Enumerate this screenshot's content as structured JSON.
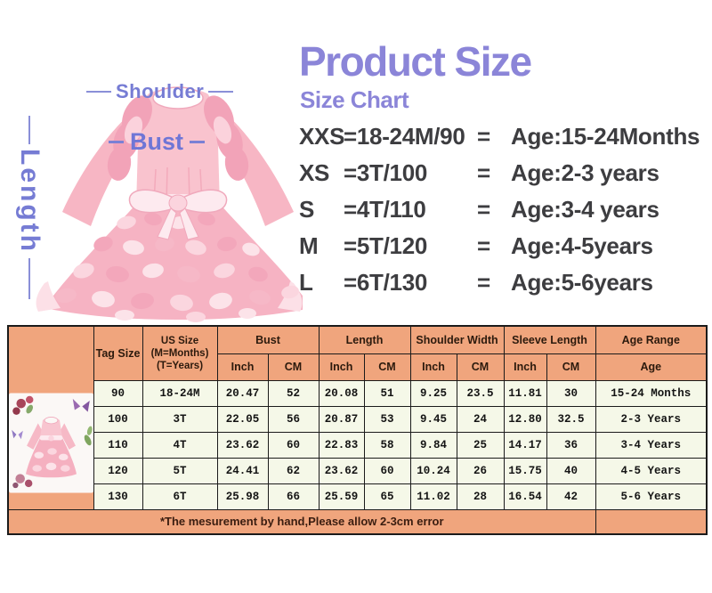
{
  "colors": {
    "accent_purple": "#8b85d8",
    "diagram_label_purple": "#767cd4",
    "table_header_peach": "#f0a57d",
    "table_body_cream": "#f5f8e8"
  },
  "header": {
    "title": "Product Size",
    "subtitle": "Size Chart"
  },
  "diagram": {
    "shoulder_label": "Shoulder",
    "bust_label": "Bust",
    "length_label": "Length"
  },
  "size_list": [
    {
      "label": "XXS",
      "spec": "=18-24M/90",
      "eq": "=",
      "age": "Age:15-24Months"
    },
    {
      "label": "XS",
      "spec": "=3T/100",
      "eq": "=",
      "age": "Age:2-3 years"
    },
    {
      "label": "S",
      "spec": "=4T/110",
      "eq": "=",
      "age": "Age:3-4 years"
    },
    {
      "label": "M",
      "spec": "=5T/120",
      "eq": "=",
      "age": "Age:4-5years"
    },
    {
      "label": "L",
      "spec": "=6T/130",
      "eq": "=",
      "age": "Age:5-6years"
    }
  ],
  "table": {
    "col_headers": {
      "tag": "Tag Size",
      "us_line1": "US Size",
      "us_line2": "(M=Months)",
      "us_line3": "(T=Years)",
      "bust": "Bust",
      "length": "Length",
      "shoulder": "Shoulder Width",
      "sleeve": "Sleeve Length",
      "age_range": "Age Range",
      "inch": "Inch",
      "cm": "CM",
      "age": "Age"
    },
    "rows": [
      [
        "90",
        "18-24M",
        "20.47",
        "52",
        "20.08",
        "51",
        "9.25",
        "23.5",
        "11.81",
        "30",
        "15-24 Months"
      ],
      [
        "100",
        "3T",
        "22.05",
        "56",
        "20.87",
        "53",
        "9.45",
        "24",
        "12.80",
        "32.5",
        "2-3 Years"
      ],
      [
        "110",
        "4T",
        "23.62",
        "60",
        "22.83",
        "58",
        "9.84",
        "25",
        "14.17",
        "36",
        "3-4 Years"
      ],
      [
        "120",
        "5T",
        "24.41",
        "62",
        "23.62",
        "60",
        "10.24",
        "26",
        "15.75",
        "40",
        "4-5 Years"
      ],
      [
        "130",
        "6T",
        "25.98",
        "66",
        "25.59",
        "65",
        "11.02",
        "28",
        "16.54",
        "42",
        "5-6 Years"
      ]
    ],
    "footnote": "*The mesurement by hand,Please allow 2-3cm error"
  }
}
